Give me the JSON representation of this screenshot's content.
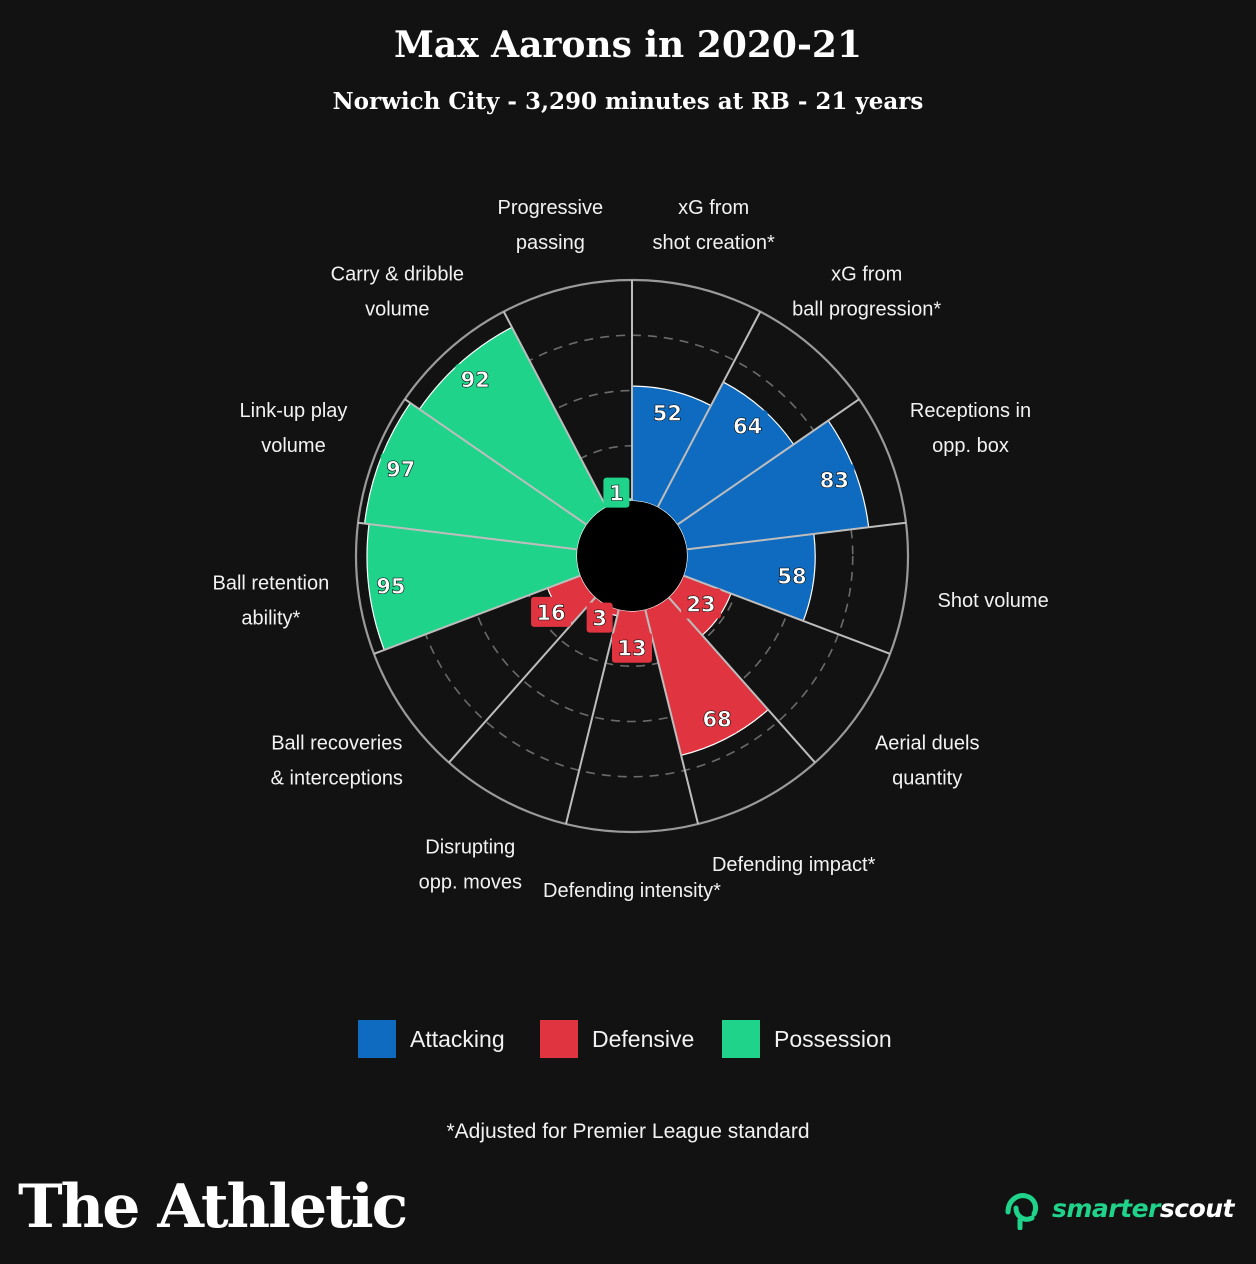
{
  "title": "Max Aarons in 2020-21",
  "subtitle": "Norwich City - 3,290 minutes at RB - 21 years",
  "colors": {
    "background": "#121212",
    "attacking": "#0f6bbf",
    "defensive": "#e03540",
    "possession": "#1fd38a",
    "grid": "#8a8a8a"
  },
  "chart_data": {
    "type": "polar-bar",
    "rlim": [
      0,
      100
    ],
    "grid": true,
    "categories": [
      {
        "label": [
          "xG from",
          "shot creation*"
        ],
        "value": 52,
        "group": "Attacking"
      },
      {
        "label": [
          "xG from",
          "ball progression*"
        ],
        "value": 64,
        "group": "Attacking"
      },
      {
        "label": [
          "Receptions in",
          "opp. box"
        ],
        "value": 83,
        "group": "Attacking"
      },
      {
        "label": [
          "Shot volume"
        ],
        "value": 58,
        "group": "Attacking"
      },
      {
        "label": [
          "Aerial duels",
          "quantity"
        ],
        "value": 23,
        "group": "Defensive"
      },
      {
        "label": [
          "Defending impact*"
        ],
        "value": 68,
        "group": "Defensive"
      },
      {
        "label": [
          "Defending intensity*"
        ],
        "value": 13,
        "group": "Defensive"
      },
      {
        "label": [
          "Disrupting",
          "opp. moves"
        ],
        "value": 3,
        "group": "Defensive"
      },
      {
        "label": [
          "Ball recoveries",
          "& interceptions"
        ],
        "value": 16,
        "group": "Defensive"
      },
      {
        "label": [
          "Ball retention",
          "ability*"
        ],
        "value": 95,
        "group": "Possession"
      },
      {
        "label": [
          "Link-up play",
          "volume"
        ],
        "value": 97,
        "group": "Possession"
      },
      {
        "label": [
          "Carry & dribble",
          "volume"
        ],
        "value": 92,
        "group": "Possession"
      },
      {
        "label": [
          "Progressive",
          "passing"
        ],
        "value": 1,
        "group": "Possession"
      }
    ],
    "legend": [
      {
        "name": "Attacking",
        "color": "#0f6bbf"
      },
      {
        "name": "Defensive",
        "color": "#e03540"
      },
      {
        "name": "Possession",
        "color": "#1fd38a"
      }
    ],
    "legend_position": "bottom"
  },
  "footnote": "*Adjusted for Premier League standard",
  "brand": "The Athletic",
  "partner": "smarterscout"
}
